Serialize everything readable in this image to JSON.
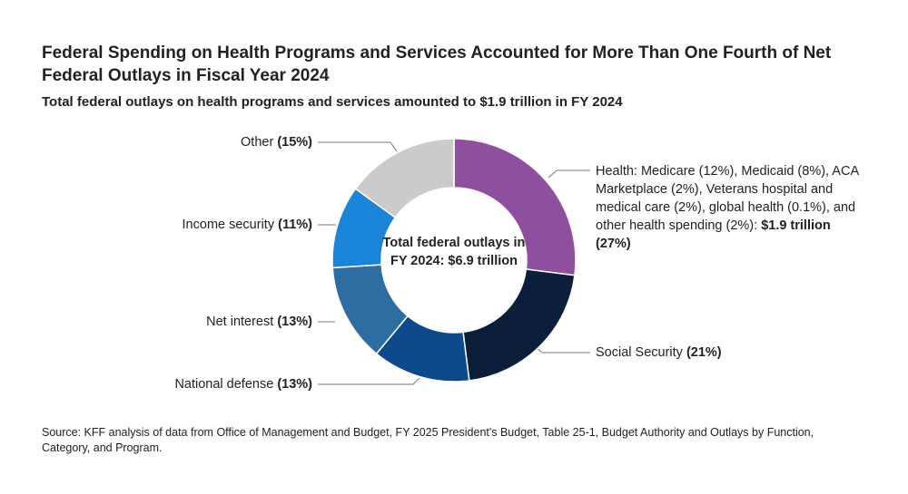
{
  "chart_data": {
    "type": "pie",
    "donut": true,
    "title": "Federal Spending on Health Programs and Services Accounted for More Than One Fourth of Net Federal Outlays in Fiscal Year 2024",
    "subtitle": "Total federal outlays on health programs and services amounted to $1.9 trillion in FY 2024",
    "center_label": "Total federal outlays in FY 2024: $6.9 trillion",
    "categories": [
      "Health: Medicare (12%), Medicaid (8%), ACA Marketplace (2%), Veterans hospital and medical care (2%), global health (0.1%), and other health spending (2%):",
      "Social Security",
      "National defense",
      "Net interest",
      "Income security",
      "Other"
    ],
    "health_amount": "$1.9 trillion",
    "values": [
      27,
      21,
      13,
      13,
      11,
      15
    ],
    "value_labels": [
      "(27%)",
      "(21%)",
      "(13%)",
      "(13%)",
      "(11%)",
      "(15%)"
    ],
    "colors": [
      "#8f4f9f",
      "#0b1f3a",
      "#0e4a8b",
      "#2e6da2",
      "#1a84d8",
      "#cbcbcb"
    ],
    "source": "Source: KFF analysis of data from Office of Management and Budget, FY 2025 President's Budget, Table 25-1, Budget Authority and Outlays by Function, Category, and Program."
  }
}
